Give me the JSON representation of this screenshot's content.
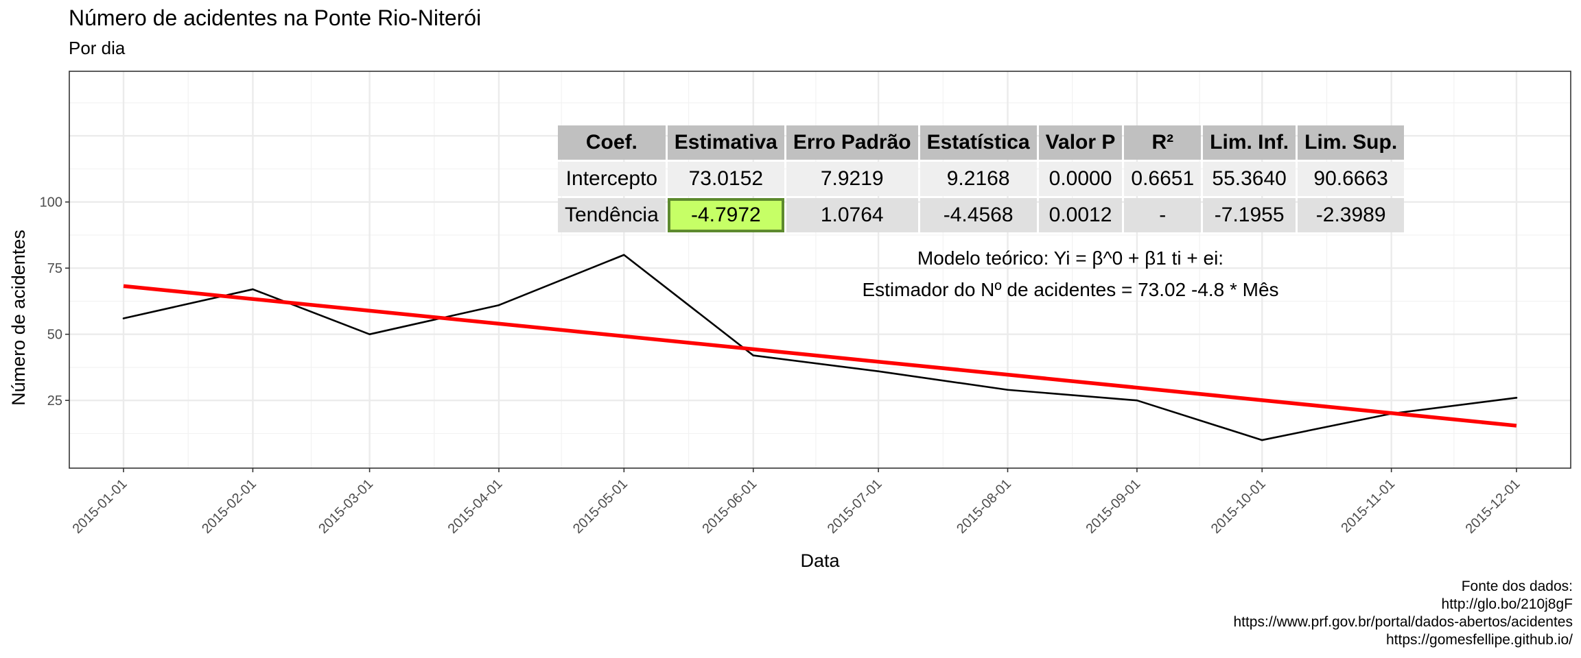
{
  "title": "Número de acidentes na Ponte Rio-Niterói",
  "subtitle": "Por dia",
  "caption": [
    "Fonte dos dados:",
    "http://glo.bo/210j8gF",
    "https://www.prf.gov.br/portal/dados-abertos/acidentes",
    "https://gomesfellipe.github.io/"
  ],
  "table": {
    "headers": [
      "Coef.",
      "Estimativa",
      "Erro Padrão",
      "Estatística",
      "Valor P",
      "R²",
      "Lim. Inf.",
      "Lim. Sup."
    ],
    "rows": [
      [
        "Intercepto",
        "73.0152",
        "7.9219",
        "9.2168",
        "0.0000",
        "0.6651",
        "55.3640",
        "90.6663"
      ],
      [
        "Tendência",
        "-4.7972",
        "1.0764",
        "-4.4568",
        "0.0012",
        "-",
        "-7.1955",
        "-2.3989"
      ]
    ],
    "highlight_color": "#c6ff66"
  },
  "model_text": [
    "Modelo teórico: Yi = β^0 + β1 ti + ei:",
    "Estimador do Nº de acidentes = 73.02 -4.8 *  Mês"
  ],
  "chart_data": {
    "type": "line",
    "title": "Número de acidentes na Ponte Rio-Niterói",
    "subtitle": "Por dia",
    "xlabel": "Data",
    "ylabel": "Número de acidentes",
    "x": [
      "2015-01-01",
      "2015-02-01",
      "2015-03-01",
      "2015-04-01",
      "2015-05-01",
      "2015-06-01",
      "2015-07-01",
      "2015-08-01",
      "2015-09-01",
      "2015-10-01",
      "2015-11-01",
      "2015-12-01"
    ],
    "series": [
      {
        "values": [
          56,
          67,
          50,
          61,
          80,
          42,
          36,
          29,
          25,
          10,
          20,
          26
        ],
        "color": "#000000"
      }
    ],
    "trend": {
      "intercept": 73.0152,
      "slope_per_month": -4.7972,
      "color": "#ff0000"
    },
    "x_ticks": [
      "2015-01-01",
      "2015-02-01",
      "2015-03-01",
      "2015-04-01",
      "2015-05-01",
      "2015-06-01",
      "2015-07-01",
      "2015-08-01",
      "2015-09-01",
      "2015-10-01",
      "2015-11-01",
      "2015-12-01"
    ],
    "y_ticks": [
      25,
      50,
      75,
      100
    ],
    "ylim": [
      -0.6,
      149.4
    ],
    "xlim": [
      "2014-12-19",
      "2015-12-14"
    ],
    "grid": true
  }
}
